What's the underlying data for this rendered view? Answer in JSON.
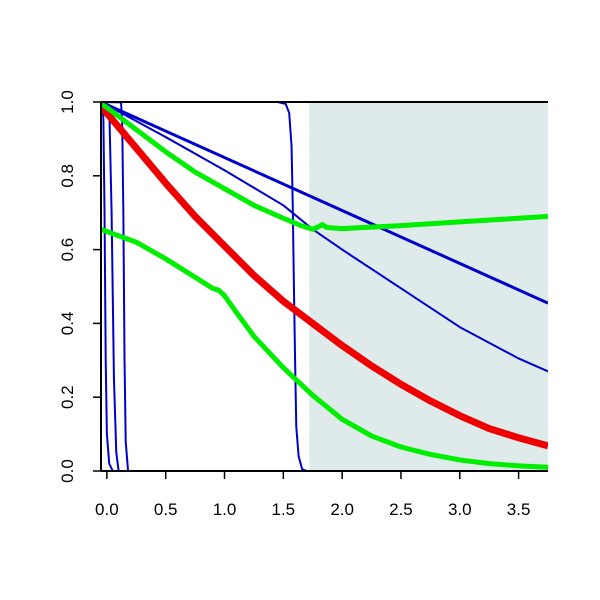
{
  "chart_data": {
    "type": "line",
    "title": "",
    "xlabel": "",
    "ylabel": "",
    "xlim": [
      -0.05,
      3.75
    ],
    "ylim": [
      0.0,
      1.0
    ],
    "x_ticks": [
      "0.0",
      "0.5",
      "1.0",
      "1.5",
      "2.0",
      "2.5",
      "3.0",
      "3.5"
    ],
    "y_ticks": [
      "0.0",
      "0.2",
      "0.4",
      "0.6",
      "0.8",
      "1.0"
    ],
    "grid": false,
    "legend": "none",
    "shaded_region": {
      "x_start": 1.72,
      "x_end": 3.75,
      "color": "#dfeaea"
    },
    "series": [
      {
        "color": "#0000cc",
        "width": 2,
        "points": [
          [
            -0.05,
            1.0
          ],
          [
            -0.03,
            0.96
          ],
          [
            -0.02,
            0.7
          ],
          [
            -0.01,
            0.3
          ],
          [
            0.0,
            0.1
          ],
          [
            0.02,
            0.02
          ],
          [
            0.05,
            0.0
          ],
          [
            3.75,
            0.0
          ]
        ]
      },
      {
        "color": "#0000cc",
        "width": 2,
        "points": [
          [
            -0.05,
            1.0
          ],
          [
            0.02,
            0.99
          ],
          [
            0.04,
            0.7
          ],
          [
            0.06,
            0.25
          ],
          [
            0.08,
            0.05
          ],
          [
            0.1,
            0.0
          ],
          [
            3.75,
            0.0
          ]
        ]
      },
      {
        "color": "#0000cc",
        "width": 2,
        "points": [
          [
            -0.05,
            1.0
          ],
          [
            0.12,
            0.999
          ],
          [
            0.13,
            0.95
          ],
          [
            0.14,
            0.7
          ],
          [
            0.15,
            0.3
          ],
          [
            0.16,
            0.08
          ],
          [
            0.18,
            0.0
          ],
          [
            3.75,
            0.0
          ]
        ]
      },
      {
        "color": "#0000cc",
        "width": 2,
        "points": [
          [
            -0.05,
            1.0
          ],
          [
            1.45,
            1.0
          ],
          [
            1.52,
            0.995
          ],
          [
            1.55,
            0.97
          ],
          [
            1.57,
            0.88
          ],
          [
            1.58,
            0.72
          ],
          [
            1.59,
            0.5
          ],
          [
            1.6,
            0.3
          ],
          [
            1.61,
            0.12
          ],
          [
            1.63,
            0.04
          ],
          [
            1.66,
            0.005
          ],
          [
            1.7,
            0.0
          ],
          [
            3.75,
            0.0
          ]
        ]
      },
      {
        "color": "#0000cc",
        "width": 3,
        "points": [
          [
            -0.05,
            1.0
          ],
          [
            3.75,
            0.455
          ]
        ]
      },
      {
        "color": "#0000cc",
        "width": 2,
        "points": [
          [
            -0.05,
            1.0
          ],
          [
            0.5,
            0.905
          ],
          [
            1.0,
            0.815
          ],
          [
            1.5,
            0.72
          ],
          [
            1.75,
            0.655
          ],
          [
            2.0,
            0.6
          ],
          [
            2.5,
            0.495
          ],
          [
            3.0,
            0.39
          ],
          [
            3.5,
            0.305
          ],
          [
            3.75,
            0.27
          ]
        ]
      },
      {
        "color": "#ee0000",
        "width": 7,
        "points": [
          [
            -0.05,
            0.985
          ],
          [
            0.0,
            0.97
          ],
          [
            0.25,
            0.875
          ],
          [
            0.5,
            0.78
          ],
          [
            0.75,
            0.69
          ],
          [
            1.0,
            0.61
          ],
          [
            1.25,
            0.53
          ],
          [
            1.5,
            0.46
          ],
          [
            1.75,
            0.4
          ],
          [
            2.0,
            0.34
          ],
          [
            2.25,
            0.285
          ],
          [
            2.5,
            0.235
          ],
          [
            2.75,
            0.19
          ],
          [
            3.0,
            0.15
          ],
          [
            3.25,
            0.115
          ],
          [
            3.5,
            0.09
          ],
          [
            3.75,
            0.068
          ]
        ]
      },
      {
        "color": "#00ee00",
        "width": 5,
        "points": [
          [
            -0.05,
            0.995
          ],
          [
            0.0,
            0.985
          ],
          [
            0.25,
            0.925
          ],
          [
            0.5,
            0.865
          ],
          [
            0.75,
            0.81
          ],
          [
            1.0,
            0.765
          ],
          [
            1.25,
            0.72
          ],
          [
            1.5,
            0.685
          ],
          [
            1.65,
            0.665
          ],
          [
            1.75,
            0.655
          ],
          [
            1.8,
            0.662
          ],
          [
            1.83,
            0.668
          ],
          [
            1.87,
            0.66
          ],
          [
            2.0,
            0.657
          ],
          [
            2.5,
            0.665
          ],
          [
            3.0,
            0.675
          ],
          [
            3.5,
            0.685
          ],
          [
            3.75,
            0.69
          ]
        ]
      },
      {
        "color": "#00ee00",
        "width": 5,
        "points": [
          [
            -0.05,
            0.655
          ],
          [
            0.25,
            0.62
          ],
          [
            0.5,
            0.575
          ],
          [
            0.75,
            0.525
          ],
          [
            0.9,
            0.495
          ],
          [
            0.95,
            0.49
          ],
          [
            1.0,
            0.475
          ],
          [
            1.1,
            0.43
          ],
          [
            1.25,
            0.365
          ],
          [
            1.5,
            0.28
          ],
          [
            1.75,
            0.205
          ],
          [
            2.0,
            0.14
          ],
          [
            2.25,
            0.095
          ],
          [
            2.5,
            0.065
          ],
          [
            2.75,
            0.045
          ],
          [
            3.0,
            0.03
          ],
          [
            3.25,
            0.02
          ],
          [
            3.5,
            0.014
          ],
          [
            3.75,
            0.01
          ]
        ]
      }
    ]
  }
}
